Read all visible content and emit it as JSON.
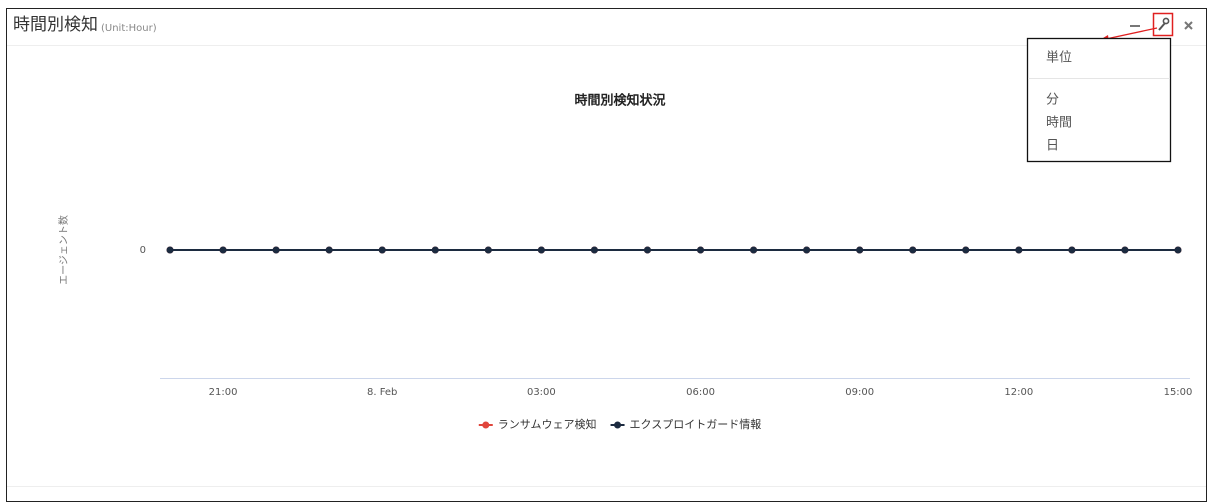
{
  "panel": {
    "title": "時間別検知",
    "unit": "(Unit:Hour)"
  },
  "menu": {
    "header": "単位",
    "items": [
      "分",
      "時間",
      "日"
    ]
  },
  "chart_data": {
    "type": "line",
    "title": "時間別検知状況",
    "y_label": "エージェント数",
    "categories": [
      null,
      "21:00",
      null,
      null,
      "8. Feb",
      null,
      null,
      "03:00",
      null,
      null,
      "06:00",
      null,
      null,
      "09:00",
      null,
      null,
      "12:00",
      null,
      null,
      "15:00"
    ],
    "series": [
      {
        "name": "ランサムウェア検知",
        "color": "#e0463c",
        "values": [
          0,
          0,
          0,
          0,
          0,
          0,
          0,
          0,
          0,
          0,
          0,
          0,
          0,
          0,
          0,
          0,
          0,
          0,
          0,
          0
        ]
      },
      {
        "name": "エクスプロイトガード情報",
        "color": "#1c2b40",
        "values": [
          0,
          0,
          0,
          0,
          0,
          0,
          0,
          0,
          0,
          0,
          0,
          0,
          0,
          0,
          0,
          0,
          0,
          0,
          0,
          0
        ]
      }
    ],
    "ylim": [
      -1,
      1
    ],
    "yticks": [
      0
    ],
    "grid": false,
    "legend": "bottom"
  }
}
